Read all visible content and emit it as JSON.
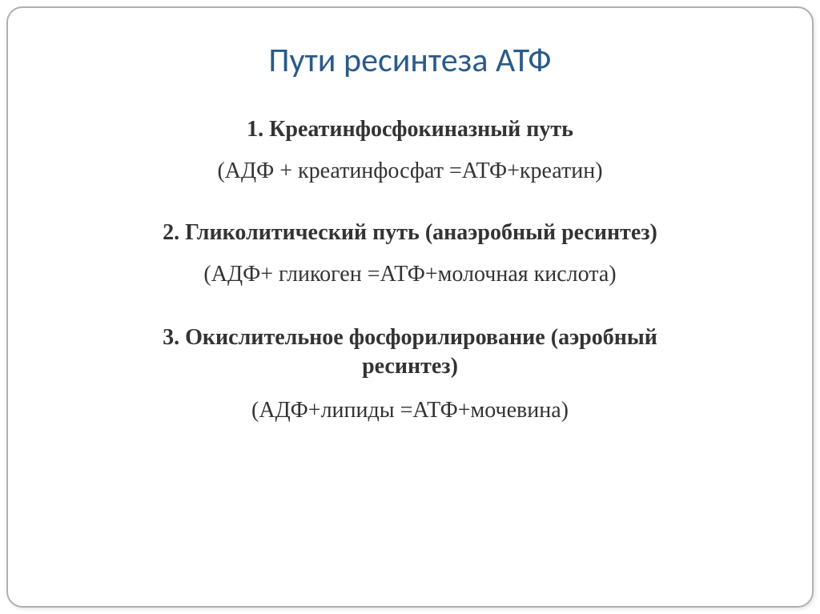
{
  "title": {
    "text": "Пути ресинтеза АТФ",
    "color": "#2a5a8a",
    "fontsize": 42
  },
  "body_color": "#333333",
  "body_fontsize": 28,
  "sections": [
    {
      "header": "1. Креатинфосфокиназный путь",
      "equation": "(АДФ + креатинфосфат =АТФ+креатин)"
    },
    {
      "header": "2. Гликолитический путь (анаэробный ресинтез)",
      "equation": "(АДФ+ гликоген =АТФ+молочная кислота)"
    },
    {
      "header_line1": "3. Окислительное фосфорилирование (аэробный",
      "header_line2": "ресинтез)",
      "equation": "(АДФ+липиды =АТФ+мочевина)"
    }
  ],
  "background_color": "#ffffff",
  "frame_border_color": "#b0b0b0"
}
